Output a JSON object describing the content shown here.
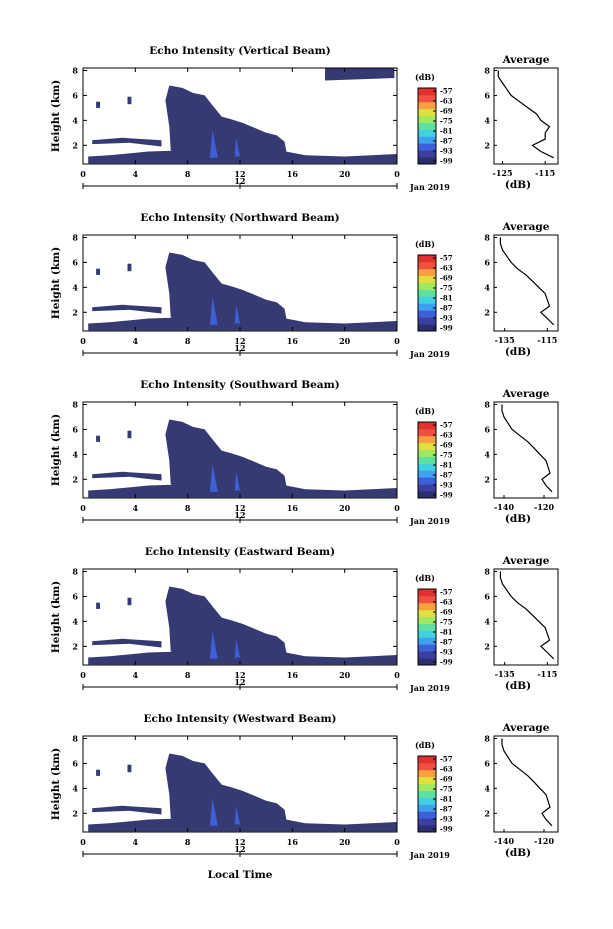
{
  "chart_data": [
    {
      "type": "heatmap",
      "title": "Echo Intensity (Vertical Beam)",
      "ylabel": "Height (km)",
      "xticks": [
        "0",
        "4",
        "8",
        "12",
        "16",
        "20",
        "0"
      ],
      "yticks": [
        "2",
        "4",
        "6",
        "8"
      ],
      "xlim": [
        0,
        24
      ],
      "ylim": [
        0.5,
        8.2
      ],
      "date_labels": [
        "12",
        "Jan 2019"
      ],
      "colorbar": {
        "unit": "(dB)",
        "ticks": [
          "-57",
          "-63",
          "-69",
          "-75",
          "-81",
          "-87",
          "-93",
          "-99"
        ]
      },
      "average_profile": {
        "title": "Average",
        "xlabel": "(dB)",
        "xticks": [
          "-125",
          "-115"
        ],
        "yticks": [
          "2",
          "4",
          "6",
          "8"
        ],
        "xlim": [
          -127,
          -112
        ],
        "height_km": [
          1,
          1.5,
          2,
          2.5,
          3,
          3.5,
          4,
          4.5,
          5,
          5.5,
          6,
          6.5,
          7,
          7.5,
          8
        ],
        "value_db": [
          -113,
          -116,
          -118,
          -115,
          -115,
          -114,
          -116,
          -117,
          -119,
          -121,
          -123,
          -124,
          -125,
          -126,
          -126
        ]
      }
    },
    {
      "type": "heatmap",
      "title": "Echo Intensity (Northward Beam)",
      "ylabel": "Height (km)",
      "xticks": [
        "0",
        "4",
        "8",
        "12",
        "16",
        "20",
        "0"
      ],
      "yticks": [
        "2",
        "4",
        "6",
        "8"
      ],
      "xlim": [
        0,
        24
      ],
      "ylim": [
        0.5,
        8.2
      ],
      "date_labels": [
        "12",
        "Jan 2019"
      ],
      "colorbar": {
        "unit": "(dB)",
        "ticks": [
          "-57",
          "-63",
          "-69",
          "-75",
          "-81",
          "-87",
          "-93",
          "-99"
        ]
      },
      "average_profile": {
        "title": "Average",
        "xlabel": "(dB)",
        "xticks": [
          "-135",
          "-115"
        ],
        "yticks": [
          "2",
          "4",
          "6",
          "8"
        ],
        "xlim": [
          -140,
          -110
        ],
        "height_km": [
          1,
          1.5,
          2,
          2.5,
          3,
          3.5,
          4,
          4.5,
          5,
          5.5,
          6,
          6.5,
          7,
          7.5,
          8
        ],
        "value_db": [
          -112,
          -115,
          -118,
          -114,
          -115,
          -116,
          -119,
          -122,
          -125,
          -129,
          -132,
          -134,
          -136,
          -137,
          -137
        ]
      }
    },
    {
      "type": "heatmap",
      "title": "Echo Intensity (Southward Beam)",
      "ylabel": "Height (km)",
      "xticks": [
        "0",
        "4",
        "8",
        "12",
        "16",
        "20",
        "0"
      ],
      "yticks": [
        "2",
        "4",
        "6",
        "8"
      ],
      "xlim": [
        0,
        24
      ],
      "ylim": [
        0.5,
        8.2
      ],
      "date_labels": [
        "12",
        "Jan 2019"
      ],
      "colorbar": {
        "unit": "(dB)",
        "ticks": [
          "-57",
          "-63",
          "-69",
          "-75",
          "-81",
          "-87",
          "-93",
          "-99"
        ]
      },
      "average_profile": {
        "title": "Average",
        "xlabel": "(dB)",
        "xticks": [
          "-140",
          "-120"
        ],
        "yticks": [
          "2",
          "4",
          "6",
          "8"
        ],
        "xlim": [
          -145,
          -113
        ],
        "height_km": [
          1,
          1.5,
          2,
          2.5,
          3,
          3.5,
          4,
          4.5,
          5,
          5.5,
          6,
          6.5,
          7,
          7.5,
          8
        ],
        "value_db": [
          -116,
          -119,
          -121,
          -117,
          -118,
          -119,
          -122,
          -125,
          -128,
          -132,
          -136,
          -138,
          -140,
          -141,
          -141
        ]
      }
    },
    {
      "type": "heatmap",
      "title": "Echo Intensity (Eastward Beam)",
      "ylabel": "Height (km)",
      "xticks": [
        "0",
        "4",
        "8",
        "12",
        "16",
        "20",
        "0"
      ],
      "yticks": [
        "2",
        "4",
        "6",
        "8"
      ],
      "xlim": [
        0,
        24
      ],
      "ylim": [
        0.5,
        8.2
      ],
      "date_labels": [
        "12",
        "Jan 2019"
      ],
      "colorbar": {
        "unit": "(dB)",
        "ticks": [
          "-57",
          "-63",
          "-69",
          "-75",
          "-81",
          "-87",
          "-93",
          "-99"
        ]
      },
      "average_profile": {
        "title": "Average",
        "xlabel": "(dB)",
        "xticks": [
          "-135",
          "-115"
        ],
        "yticks": [
          "2",
          "4",
          "6",
          "8"
        ],
        "xlim": [
          -140,
          -110
        ],
        "height_km": [
          1,
          1.5,
          2,
          2.5,
          3,
          3.5,
          4,
          4.5,
          5,
          5.5,
          6,
          6.5,
          7,
          7.5,
          8
        ],
        "value_db": [
          -112,
          -115,
          -118,
          -114,
          -115,
          -116,
          -119,
          -122,
          -125,
          -129,
          -132,
          -134,
          -136,
          -137,
          -137
        ]
      }
    },
    {
      "type": "heatmap",
      "title": "Echo Intensity (Westward Beam)",
      "ylabel": "Height (km)",
      "xticks": [
        "0",
        "4",
        "8",
        "12",
        "16",
        "20",
        "0"
      ],
      "yticks": [
        "2",
        "4",
        "6",
        "8"
      ],
      "xlim": [
        0,
        24
      ],
      "ylim": [
        0.5,
        8.2
      ],
      "date_labels": [
        "12",
        "Jan 2019"
      ],
      "colorbar": {
        "unit": "(dB)",
        "ticks": [
          "-57",
          "-63",
          "-69",
          "-75",
          "-81",
          "-87",
          "-93",
          "-99"
        ]
      },
      "average_profile": {
        "title": "Average",
        "xlabel": "(dB)",
        "xticks": [
          "-140",
          "-120"
        ],
        "yticks": [
          "2",
          "4",
          "6",
          "8"
        ],
        "xlim": [
          -145,
          -113
        ],
        "height_km": [
          1,
          1.5,
          2,
          2.5,
          3,
          3.5,
          4,
          4.5,
          5,
          5.5,
          6,
          6.5,
          7,
          7.5,
          8
        ],
        "value_db": [
          -116,
          -119,
          -121,
          -117,
          -118,
          -119,
          -122,
          -125,
          -128,
          -132,
          -136,
          -138,
          -140,
          -141,
          -141
        ]
      }
    }
  ],
  "shared": {
    "xlabel": "Local Time",
    "colormap": [
      "#2b2f6e",
      "#3b3fa0",
      "#3f5fd8",
      "#3fa0f0",
      "#40d0e0",
      "#60e0a0",
      "#a0e860",
      "#e0e040",
      "#f8a040",
      "#f05040",
      "#e03030"
    ],
    "echo_color": "#353a73"
  }
}
